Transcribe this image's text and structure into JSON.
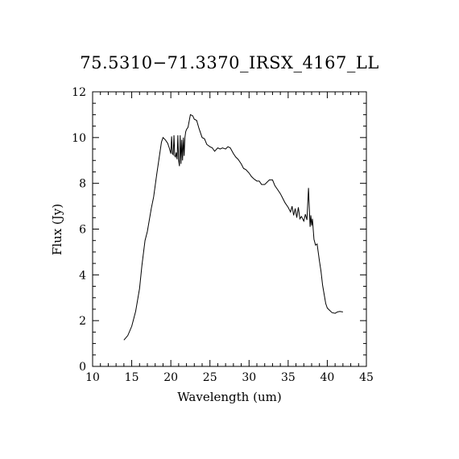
{
  "chart_data": {
    "type": "line",
    "title": "75.5310−71.3370_IRSX_4167_LL",
    "xlabel": "Wavelength (um)",
    "ylabel": "Flux (Jy)",
    "xlim": [
      10,
      45
    ],
    "ylim": [
      0,
      12
    ],
    "x_ticks": [
      10,
      15,
      20,
      25,
      30,
      35,
      40,
      45
    ],
    "y_ticks": [
      0,
      2,
      4,
      6,
      8,
      10,
      12
    ],
    "grid": false,
    "series": [
      {
        "color": "#000000",
        "x": [
          14.0,
          14.5,
          15.0,
          15.5,
          16.0,
          16.3,
          16.7,
          17.0,
          17.5,
          17.8,
          18.2,
          18.5,
          18.8,
          19.0,
          19.3,
          19.6,
          19.8,
          20.0,
          20.1,
          20.2,
          20.3,
          20.4,
          20.5,
          20.6,
          20.7,
          20.8,
          20.9,
          21.0,
          21.1,
          21.2,
          21.3,
          21.4,
          21.5,
          21.6,
          21.7,
          21.8,
          21.9,
          22.0,
          22.2,
          22.5,
          22.8,
          23.0,
          23.3,
          23.6,
          24.0,
          24.3,
          24.6,
          25.0,
          25.3,
          25.6,
          26.0,
          26.3,
          26.6,
          27.0,
          27.3,
          27.6,
          28.0,
          28.3,
          28.6,
          29.0,
          29.3,
          29.6,
          30.0,
          30.3,
          30.6,
          31.0,
          31.3,
          31.6,
          32.0,
          32.3,
          32.6,
          33.0,
          33.3,
          33.6,
          34.0,
          34.3,
          34.6,
          35.0,
          35.3,
          35.5,
          35.7,
          35.9,
          36.1,
          36.3,
          36.5,
          36.7,
          37.0,
          37.2,
          37.4,
          37.6,
          37.8,
          37.9,
          38.0,
          38.1,
          38.3,
          38.5,
          38.7,
          39.0,
          39.2,
          39.4,
          39.6,
          39.8,
          40.0,
          40.3,
          40.6,
          41.0,
          41.3,
          41.6,
          42.0
        ],
        "y": [
          1.15,
          1.35,
          1.75,
          2.4,
          3.4,
          4.4,
          5.5,
          5.9,
          6.9,
          7.4,
          8.4,
          9.1,
          9.8,
          10.0,
          9.9,
          9.75,
          9.55,
          9.3,
          10.05,
          9.3,
          9.25,
          10.1,
          9.2,
          9.15,
          9.35,
          9.05,
          10.1,
          9.0,
          8.75,
          10.1,
          8.85,
          9.9,
          9.0,
          10.0,
          9.2,
          10.0,
          10.25,
          10.35,
          10.45,
          11.0,
          10.95,
          10.8,
          10.75,
          10.4,
          10.0,
          9.95,
          9.7,
          9.6,
          9.55,
          9.4,
          9.55,
          9.5,
          9.55,
          9.5,
          9.6,
          9.55,
          9.3,
          9.15,
          9.05,
          8.85,
          8.65,
          8.6,
          8.45,
          8.3,
          8.2,
          8.1,
          8.1,
          7.95,
          7.95,
          8.05,
          8.15,
          8.15,
          7.9,
          7.75,
          7.55,
          7.35,
          7.15,
          6.95,
          6.75,
          7.0,
          6.6,
          6.9,
          6.5,
          6.95,
          6.45,
          6.55,
          6.35,
          6.65,
          6.4,
          7.8,
          6.1,
          6.6,
          6.15,
          6.45,
          5.55,
          5.3,
          5.35,
          4.6,
          4.15,
          3.55,
          3.15,
          2.75,
          2.55,
          2.45,
          2.35,
          2.32,
          2.38,
          2.4,
          2.38
        ]
      }
    ]
  }
}
